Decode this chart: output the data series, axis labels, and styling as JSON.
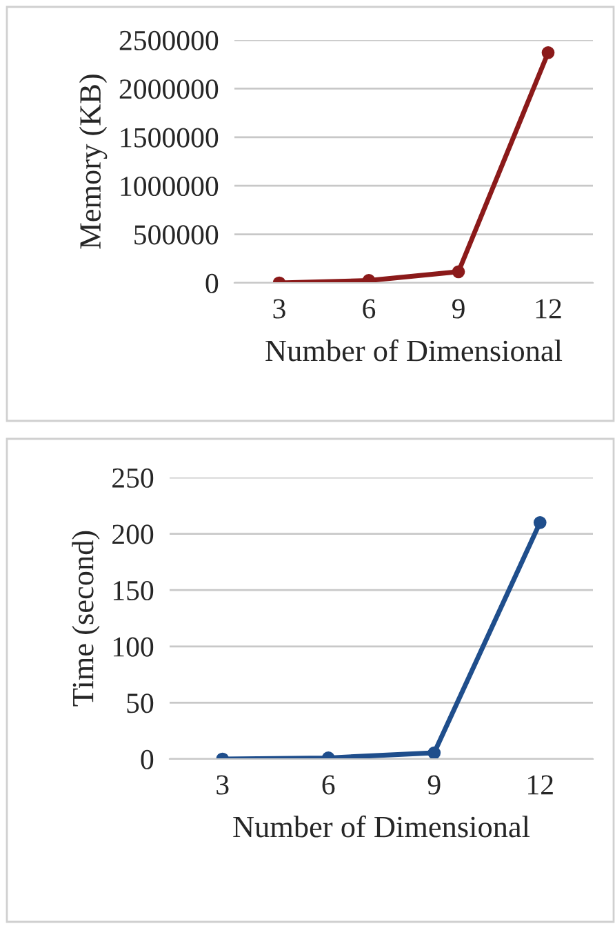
{
  "chart_data": [
    {
      "type": "line",
      "categories": [
        "3",
        "6",
        "9",
        "12"
      ],
      "ylabel": "Memory (KB)",
      "xlabel": "Number of Dimensional",
      "ylim": [
        0,
        2500000
      ],
      "yticks": [
        0,
        500000,
        1000000,
        1500000,
        2000000,
        2500000
      ],
      "grid": "y",
      "marker": "circle",
      "line_style": "solid",
      "series": [
        {
          "color": "#8b1a1a",
          "values": [
            0,
            25000,
            115000,
            2370000
          ]
        }
      ]
    },
    {
      "type": "line",
      "categories": [
        "3",
        "6",
        "9",
        "12"
      ],
      "ylabel": "Time (second)",
      "xlabel": "Number of Dimensional",
      "ylim": [
        0,
        250
      ],
      "yticks": [
        0,
        50,
        100,
        150,
        200,
        250
      ],
      "grid": "y",
      "marker": "circle",
      "line_style": "solid",
      "series": [
        {
          "color": "#1f4e8c",
          "values": [
            0,
            1,
            5.5,
            210
          ]
        }
      ]
    }
  ]
}
